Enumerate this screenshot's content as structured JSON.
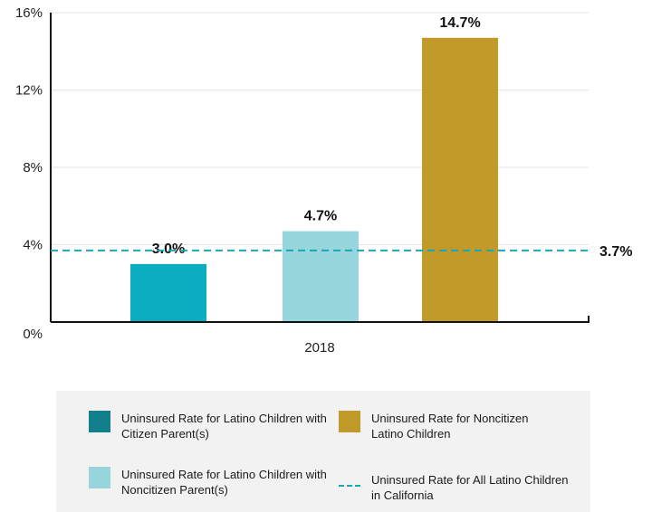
{
  "chart_data": {
    "type": "bar",
    "categories": [
      "2018"
    ],
    "series": [
      {
        "name": "Uninsured Rate for Latino Children with Citizen Parent(s)",
        "values": [
          3.0
        ],
        "label": "3.0%",
        "color": "#0aaec0",
        "legend_color": "#117f8c"
      },
      {
        "name": "Uninsured Rate for Latino Children with Noncitizen Parent(s)",
        "values": [
          4.7
        ],
        "label": "4.7%",
        "color": "#97d6dd",
        "legend_color": "#97d6dd"
      },
      {
        "name": "Uninsured Rate for Noncitizen Latino Children",
        "values": [
          14.7
        ],
        "label": "14.7%",
        "color": "#c29a2a",
        "legend_color": "#c29a2a"
      }
    ],
    "reference_line": {
      "name": "Uninsured Rate for All Latino Children in California",
      "value": 3.7,
      "label": "3.7%",
      "color": "#1aa7b5"
    },
    "ylim": [
      0,
      16
    ],
    "yticks": [
      0,
      4,
      8,
      12,
      16
    ],
    "ytick_labels": [
      "0%",
      "4%",
      "8%",
      "12%",
      "16%"
    ],
    "xlabel": "",
    "ylabel": "",
    "grid": true,
    "legend_position": "bottom"
  },
  "legend": {
    "item_citizen": "Uninsured Rate for Latino Children with Citizen Parent(s)",
    "item_noncitizen_children": "Uninsured Rate for Noncitizen Latino Children",
    "item_noncitizen_parents": "Uninsured Rate for Latino Children with Noncitizen Parent(s)",
    "item_all_latino": "Uninsured Rate for All Latino Children in California"
  }
}
